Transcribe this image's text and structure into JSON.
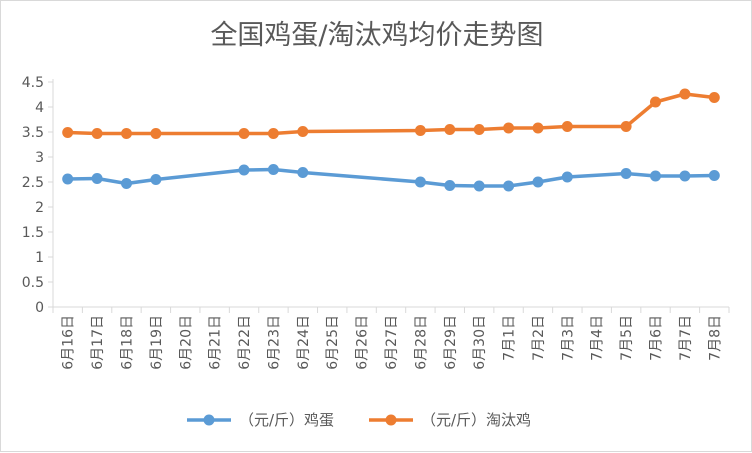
{
  "chart_data": {
    "type": "line",
    "title": "全国鸡蛋/淘汰鸡均价走势图",
    "xlabel": "",
    "ylabel": "",
    "ylim": [
      0,
      4.5
    ],
    "yticks": [
      "0",
      "0.5",
      "1",
      "1.5",
      "2",
      "2.5",
      "3",
      "3.5",
      "4",
      "4.5"
    ],
    "categories": [
      "6月16日",
      "6月17日",
      "6月18日",
      "6月19日",
      "6月20日",
      "6月21日",
      "6月22日",
      "6月23日",
      "6月24日",
      "6月25日",
      "6月26日",
      "6月27日",
      "6月28日",
      "6月29日",
      "6月30日",
      "7月1日",
      "7月2日",
      "7月3日",
      "7月4日",
      "7月5日",
      "7月6日",
      "7月7日",
      "7月8日"
    ],
    "grid": false,
    "legend_position": "bottom",
    "series": [
      {
        "name": "（元/斤）鸡蛋",
        "color": "#5b9bd5",
        "values": [
          2.56,
          2.57,
          2.47,
          2.55,
          null,
          null,
          2.74,
          2.75,
          2.69,
          null,
          null,
          null,
          2.5,
          2.43,
          2.42,
          2.42,
          2.5,
          2.6,
          null,
          2.67,
          2.62,
          2.62,
          2.63
        ]
      },
      {
        "name": "（元/斤）淘汰鸡",
        "color": "#ed7d31",
        "values": [
          3.49,
          3.47,
          3.47,
          3.47,
          null,
          null,
          3.47,
          3.47,
          3.51,
          null,
          null,
          null,
          3.53,
          3.55,
          3.55,
          3.58,
          3.58,
          3.61,
          null,
          3.61,
          4.1,
          4.26,
          4.19
        ]
      }
    ]
  }
}
